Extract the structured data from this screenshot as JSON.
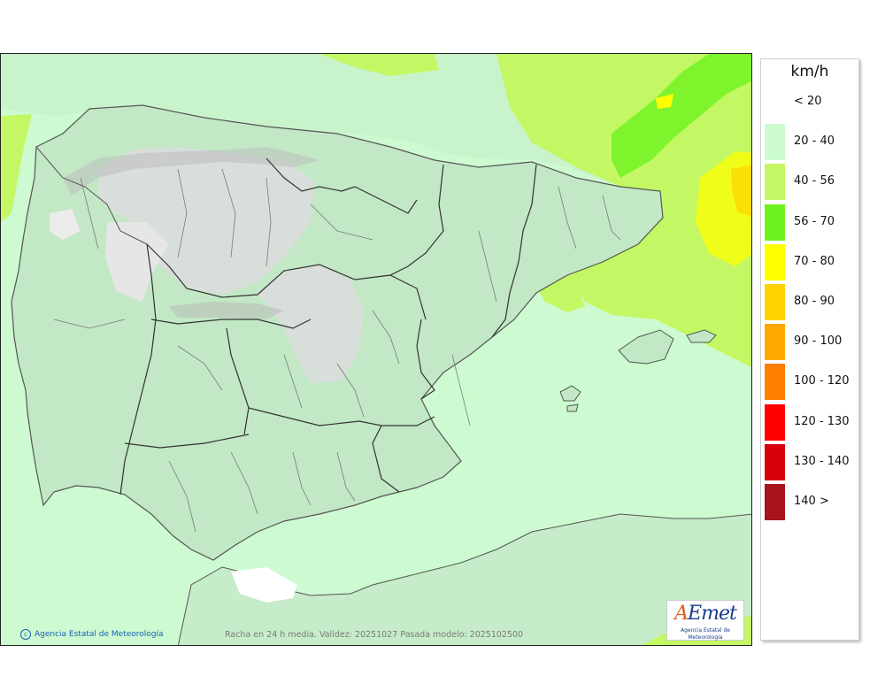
{
  "legend": {
    "units": "km/h",
    "classes": [
      {
        "label": "< 20",
        "color": "#ffffff"
      },
      {
        "label": "20 - 40",
        "color": "#ccfbcf"
      },
      {
        "label": "40 - 56",
        "color": "#c3f864"
      },
      {
        "label": "56 - 70",
        "color": "#6ef21e"
      },
      {
        "label": "70 - 80",
        "color": "#ffff00"
      },
      {
        "label": "80 - 90",
        "color": "#ffd200"
      },
      {
        "label": "90 - 100",
        "color": "#ffa800"
      },
      {
        "label": "100 - 120",
        "color": "#ff7f00"
      },
      {
        "label": "120 - 130",
        "color": "#ff0000"
      },
      {
        "label": "130 - 140",
        "color": "#d7000c"
      },
      {
        "label": "140 >",
        "color": "#a8141b"
      }
    ]
  },
  "map": {
    "credit": "Agencia Estatal de Meteorología",
    "caption": "Racha en 24 h media. Validez: 20251027 Pasada modelo: 2025102500",
    "logo_mark": "AEmet",
    "logo_sub": "Agencia Estatal de Meteorología",
    "copyright_icon": "copyright-icon"
  }
}
